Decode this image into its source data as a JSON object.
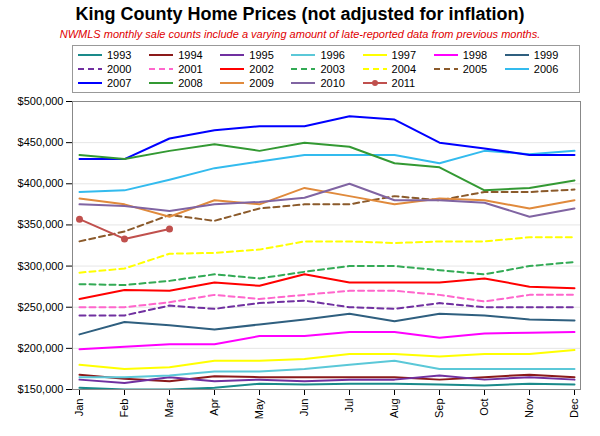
{
  "chart_data": {
    "type": "line",
    "title": "King County Home Prices (not adjusted for inflation)",
    "subtitle": "NWMLS monthly sale counts include a varying amount of late-reported data from previous months.",
    "categories": [
      "Jan",
      "Feb",
      "Mar",
      "Apr",
      "May",
      "Jun",
      "Jul",
      "Aug",
      "Sep",
      "Oct",
      "Nov",
      "Dec"
    ],
    "series": [
      {
        "name": "1993",
        "color": "#1a8a8a",
        "line_style": "solid",
        "values": [
          152000,
          150000,
          150000,
          152000,
          157000,
          156000,
          157000,
          157000,
          156000,
          155000,
          157000,
          156000
        ]
      },
      {
        "name": "1994",
        "color": "#8b1a1a",
        "line_style": "solid",
        "values": [
          168000,
          163000,
          160000,
          166000,
          165000,
          165000,
          165000,
          165000,
          162000,
          165000,
          168000,
          165000
        ]
      },
      {
        "name": "1995",
        "color": "#7030a0",
        "line_style": "solid",
        "values": [
          162000,
          158000,
          165000,
          160000,
          162000,
          160000,
          162000,
          162000,
          167000,
          162000,
          165000,
          162000
        ]
      },
      {
        "name": "1996",
        "color": "#5bc8d8",
        "line_style": "solid",
        "values": [
          165000,
          165000,
          167000,
          172000,
          172000,
          175000,
          180000,
          185000,
          175000,
          175000,
          175000,
          175000
        ]
      },
      {
        "name": "1997",
        "color": "#ffff00",
        "line_style": "solid",
        "values": [
          180000,
          175000,
          177000,
          185000,
          185000,
          187000,
          193000,
          193000,
          190000,
          193000,
          193000,
          198000
        ]
      },
      {
        "name": "1998",
        "color": "#ff00ff",
        "line_style": "solid",
        "values": [
          199000,
          202000,
          205000,
          205000,
          215000,
          215000,
          220000,
          220000,
          213000,
          218000,
          219000,
          220000
        ]
      },
      {
        "name": "1999",
        "color": "#2f5f7f",
        "line_style": "solid",
        "values": [
          217000,
          232000,
          228000,
          223000,
          229000,
          235000,
          242000,
          233000,
          242000,
          240000,
          235000,
          234000
        ]
      },
      {
        "name": "2000",
        "color": "#7030a0",
        "line_style": "dashed",
        "values": [
          240000,
          240000,
          252000,
          248000,
          255000,
          258000,
          250000,
          248000,
          255000,
          250000,
          250000,
          250000
        ]
      },
      {
        "name": "2001",
        "color": "#ff66cc",
        "line_style": "dashed",
        "values": [
          250000,
          250000,
          256000,
          265000,
          260000,
          265000,
          270000,
          270000,
          265000,
          257000,
          265000,
          265000
        ]
      },
      {
        "name": "2002",
        "color": "#ff0000",
        "line_style": "solid",
        "values": [
          260000,
          271000,
          270000,
          280000,
          276000,
          290000,
          280000,
          280000,
          280000,
          285000,
          275000,
          273000
        ]
      },
      {
        "name": "2003",
        "color": "#33aa55",
        "line_style": "dashed",
        "values": [
          278000,
          277000,
          282000,
          290000,
          285000,
          293000,
          300000,
          300000,
          295000,
          290000,
          300000,
          305000
        ]
      },
      {
        "name": "2004",
        "color": "#ffff00",
        "line_style": "dashed",
        "values": [
          292000,
          297000,
          315000,
          316000,
          320000,
          330000,
          330000,
          328000,
          330000,
          330000,
          335000,
          335000
        ]
      },
      {
        "name": "2005",
        "color": "#8b5a2b",
        "line_style": "dashed",
        "values": [
          330000,
          342000,
          362000,
          355000,
          370000,
          375000,
          375000,
          385000,
          380000,
          390000,
          390000,
          393000
        ]
      },
      {
        "name": "2006",
        "color": "#33bbee",
        "line_style": "solid",
        "values": [
          390000,
          392000,
          405000,
          419000,
          427000,
          435000,
          435000,
          435000,
          425000,
          440000,
          436000,
          440000
        ]
      },
      {
        "name": "2007",
        "color": "#0000ff",
        "line_style": "solid",
        "values": [
          430000,
          430000,
          455000,
          465000,
          470000,
          470000,
          482000,
          478000,
          450000,
          443000,
          435000,
          435000
        ]
      },
      {
        "name": "2008",
        "color": "#339933",
        "line_style": "solid",
        "values": [
          435000,
          430000,
          440000,
          448000,
          440000,
          450000,
          445000,
          425000,
          420000,
          392000,
          395000,
          404000
        ]
      },
      {
        "name": "2009",
        "color": "#e08a3c",
        "line_style": "solid",
        "values": [
          382000,
          375000,
          360000,
          380000,
          375000,
          395000,
          385000,
          375000,
          382000,
          380000,
          370000,
          380000
        ]
      },
      {
        "name": "2010",
        "color": "#8064a2",
        "line_style": "solid",
        "values": [
          375000,
          373000,
          367000,
          375000,
          378000,
          383000,
          400000,
          380000,
          380000,
          377000,
          360000,
          370000
        ]
      },
      {
        "name": "2011",
        "color": "#c0504d",
        "line_style": "solid",
        "marker": "circle",
        "values": [
          357000,
          333000,
          345000,
          null,
          null,
          null,
          null,
          null,
          null,
          null,
          null,
          null
        ]
      }
    ],
    "ylim": [
      150000,
      500000
    ],
    "yticks": [
      {
        "value": 150000,
        "label": "$150,000"
      },
      {
        "value": 200000,
        "label": "$200,000"
      },
      {
        "value": 250000,
        "label": "$250,000"
      },
      {
        "value": 300000,
        "label": "$300,000"
      },
      {
        "value": 350000,
        "label": "$350,000"
      },
      {
        "value": 400000,
        "label": "$400,000"
      },
      {
        "value": 450000,
        "label": "$450,000"
      },
      {
        "value": 500000,
        "label": "$500,000"
      }
    ],
    "grid": true,
    "legend": "top"
  }
}
